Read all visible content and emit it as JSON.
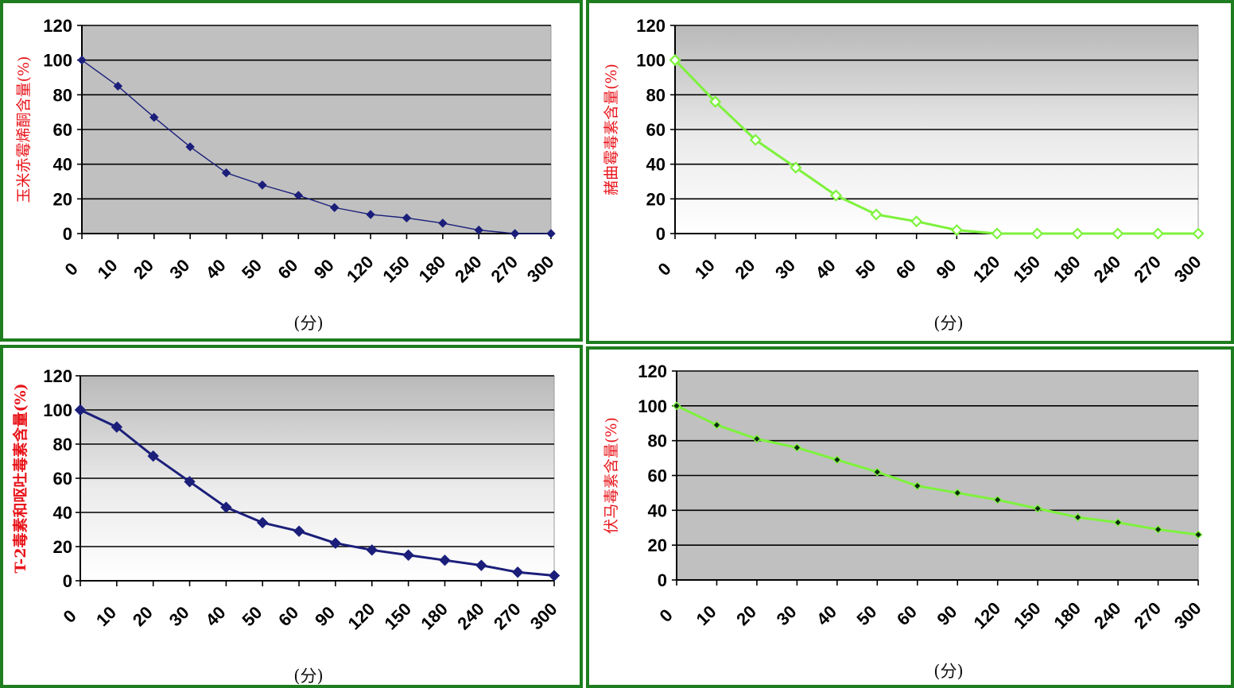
{
  "chart_data": [
    {
      "type": "line",
      "categories": [
        "0",
        "10",
        "20",
        "30",
        "40",
        "50",
        "60",
        "90",
        "120",
        "150",
        "180",
        "240",
        "270",
        "300"
      ],
      "series": [
        {
          "values": [
            100,
            85,
            67,
            50,
            35,
            28,
            22,
            15,
            11,
            9,
            6,
            2,
            0,
            0
          ],
          "color": "#1b1f7a"
        }
      ],
      "xlabel": "(分)",
      "ylabel": "玉米赤霉烯酮含量(%)",
      "ylim": [
        0,
        120
      ],
      "yticks": [
        "0",
        "20",
        "40",
        "60",
        "80",
        "100",
        "120"
      ],
      "marker": "filled-diamond",
      "grid": true,
      "plot_background": "flat gray"
    },
    {
      "type": "line",
      "categories": [
        "0",
        "10",
        "20",
        "30",
        "40",
        "50",
        "60",
        "90",
        "120",
        "150",
        "180",
        "240",
        "270",
        "300"
      ],
      "series": [
        {
          "values": [
            100,
            76,
            54,
            38,
            22,
            11,
            7,
            2,
            0,
            0,
            0,
            0,
            0,
            0
          ],
          "color": "#7df23c"
        }
      ],
      "xlabel": "(分)",
      "ylabel": "赭曲霉毒素含量(%)",
      "ylim": [
        0,
        120
      ],
      "yticks": [
        "0",
        "20",
        "40",
        "60",
        "80",
        "100",
        "120"
      ],
      "marker": "hollow-diamond",
      "grid": true,
      "plot_background": "gray-to-white gradient"
    },
    {
      "type": "line",
      "categories": [
        "0",
        "10",
        "20",
        "30",
        "40",
        "50",
        "60",
        "90",
        "120",
        "150",
        "180",
        "240",
        "270",
        "300"
      ],
      "series": [
        {
          "values": [
            100,
            90,
            73,
            58,
            43,
            34,
            29,
            22,
            18,
            15,
            12,
            9,
            5,
            3
          ],
          "color": "#1b1f7a"
        }
      ],
      "xlabel": "(分)",
      "ylabel": "T-2毒素和呕吐毒素含量(%)",
      "ylim": [
        0,
        120
      ],
      "yticks": [
        "0",
        "20",
        "40",
        "60",
        "80",
        "100",
        "120"
      ],
      "marker": "filled-diamond",
      "grid": true,
      "plot_background": "gray-to-white gradient"
    },
    {
      "type": "line",
      "categories": [
        "0",
        "10",
        "20",
        "30",
        "40",
        "50",
        "60",
        "90",
        "120",
        "150",
        "180",
        "240",
        "270",
        "300"
      ],
      "series": [
        {
          "values": [
            100,
            89,
            81,
            76,
            69,
            62,
            54,
            50,
            46,
            41,
            36,
            33,
            29,
            26
          ],
          "color": "#7df23c"
        }
      ],
      "xlabel": "(分)",
      "ylabel": "伏马毒素含量(%)",
      "ylim": [
        0,
        120
      ],
      "yticks": [
        "0",
        "20",
        "40",
        "60",
        "80",
        "100",
        "120"
      ],
      "marker": "dark-diamond",
      "grid": true,
      "plot_background": "flat gray"
    }
  ],
  "colors": {
    "panel_border": "#1e7d1e",
    "axis_label": "#e8151b",
    "navy_series": "#1b1f7a",
    "green_series": "#7df23c",
    "plot_gray": "#c0c0c0"
  }
}
